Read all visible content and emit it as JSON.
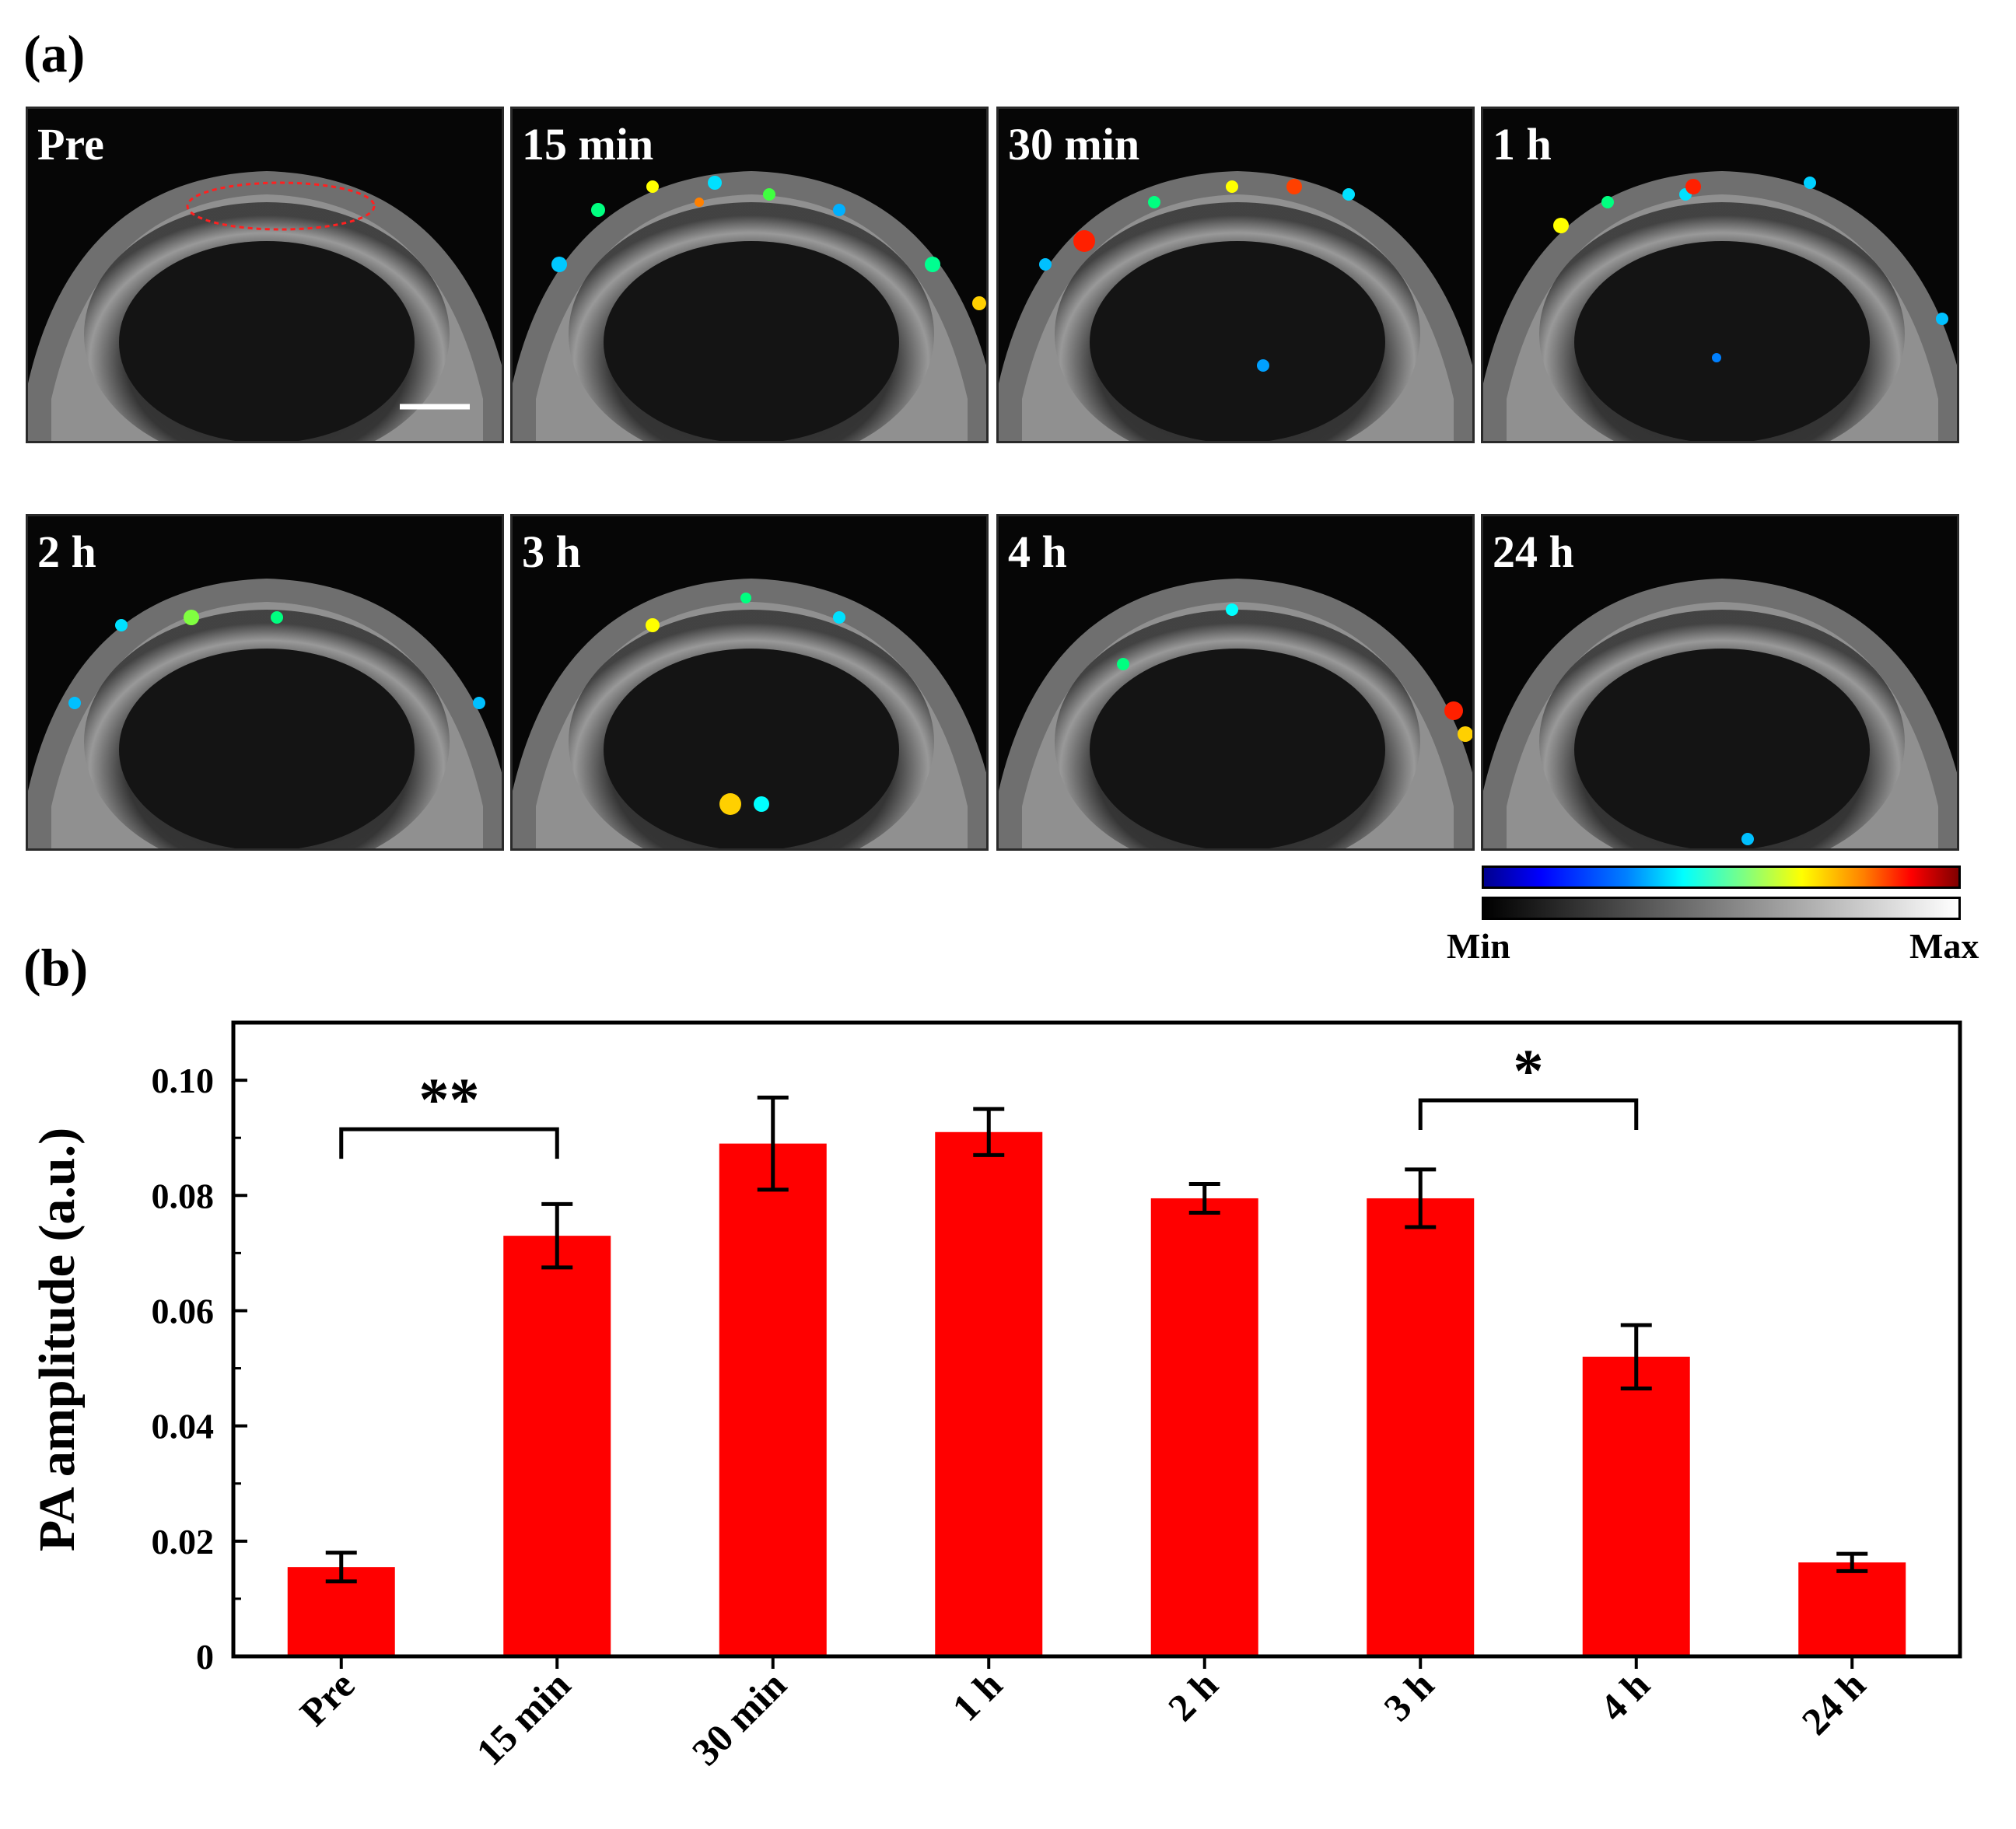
{
  "figure": {
    "panel_a_label": "(a)",
    "panel_b_label": "(b)",
    "images": [
      {
        "label": "Pre"
      },
      {
        "label": "15 min"
      },
      {
        "label": "30 min"
      },
      {
        "label": "1 h"
      },
      {
        "label": "2 h"
      },
      {
        "label": "3 h"
      },
      {
        "label": "4 h"
      },
      {
        "label": "24 h"
      }
    ],
    "colorbar": {
      "min_label": "Min",
      "max_label": "Max"
    }
  },
  "chart_data": {
    "type": "bar",
    "title": "",
    "xlabel": "",
    "ylabel": "PA amplitude (a.u.)",
    "categories": [
      "Pre",
      "15 min",
      "30 min",
      "1 h",
      "2 h",
      "3 h",
      "4 h",
      "24 h"
    ],
    "values": [
      0.0155,
      0.073,
      0.089,
      0.091,
      0.0795,
      0.0795,
      0.052,
      0.0163
    ],
    "errors": [
      0.0025,
      0.0055,
      0.008,
      0.004,
      0.0025,
      0.005,
      0.0055,
      0.0015
    ],
    "ylim": [
      0,
      0.11
    ],
    "yticks": [
      0,
      0.02,
      0.04,
      0.06,
      0.08,
      0.1
    ],
    "ytick_labels": [
      "0",
      "0.02",
      "0.04",
      "0.06",
      "0.08",
      "0.10"
    ],
    "bar_color": "#ff0000",
    "significance": [
      {
        "from": 0,
        "to": 1,
        "label": "**",
        "bracket_y": 0.0915
      },
      {
        "from": 5,
        "to": 6,
        "label": "*",
        "bracket_y": 0.0965
      }
    ],
    "grid": false
  }
}
